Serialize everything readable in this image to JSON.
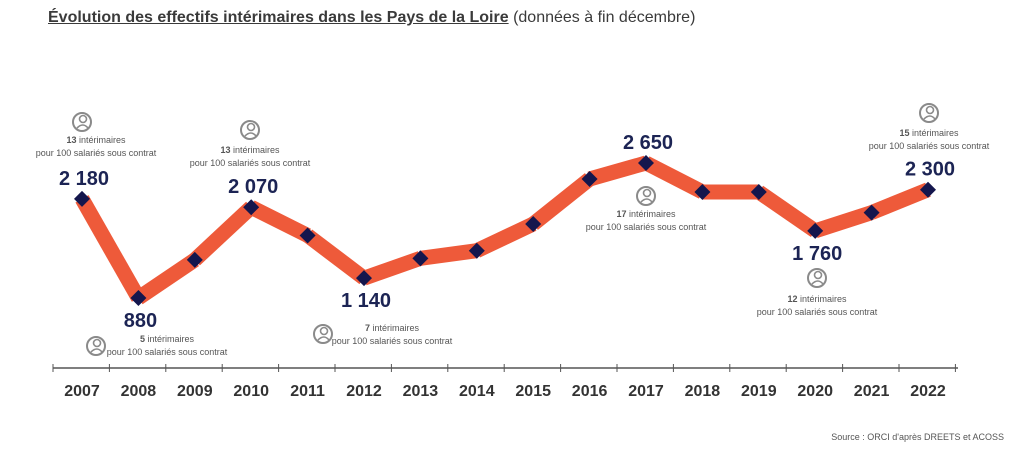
{
  "title": "Évolution des effectifs intérimaires dans les Pays de la Loire",
  "subtitle": "(données à fin décembre)",
  "source": "Source : ORCI d'après DREETS et ACOSS",
  "colors": {
    "line": "#ee5a3a",
    "marker": "#14164d",
    "label": "#1c2454",
    "axis": "#555555",
    "annot": "#555555"
  },
  "chart_data": {
    "type": "line",
    "x": [
      "2007",
      "2008",
      "2009",
      "2010",
      "2011",
      "2012",
      "2013",
      "2014",
      "2015",
      "2016",
      "2017",
      "2018",
      "2019",
      "2020",
      "2021",
      "2022"
    ],
    "series": [
      {
        "values": [
          2180,
          880,
          1380,
          2070,
          1700,
          1140,
          1400,
          1500,
          1850,
          2440,
          2650,
          2270,
          2270,
          1760,
          2000,
          2300
        ]
      }
    ],
    "data_labels": [
      {
        "year": "2007",
        "text": "2 180"
      },
      {
        "year": "2008",
        "text": "880"
      },
      {
        "year": "2010",
        "text": "2 070"
      },
      {
        "year": "2012",
        "text": "1 140"
      },
      {
        "year": "2017",
        "text": "2 650"
      },
      {
        "year": "2020",
        "text": "1 760"
      },
      {
        "year": "2022",
        "text": "2 300"
      }
    ],
    "annotations": [
      {
        "year": "2007",
        "bold": "13",
        "line1": " intérimaires",
        "line2": "pour 100 salariés sous contrat",
        "position": "above"
      },
      {
        "year": "2008",
        "bold": "5",
        "line1": " intérimaires",
        "line2": "pour 100 salariés sous contrat",
        "position": "below"
      },
      {
        "year": "2010",
        "bold": "13",
        "line1": " intérimaires",
        "line2": "pour 100 salariés sous contrat",
        "position": "above"
      },
      {
        "year": "2012",
        "bold": "7",
        "line1": " intérimaires",
        "line2": "pour 100 salariés sous contrat",
        "position": "below"
      },
      {
        "year": "2017",
        "bold": "17",
        "line1": " intérimaires",
        "line2": "pour 100 salariés sous contrat",
        "position": "below"
      },
      {
        "year": "2020",
        "bold": "12",
        "line1": " intérimaires",
        "line2": "pour 100 salariés sous contrat",
        "position": "below"
      },
      {
        "year": "2022",
        "bold": "15",
        "line1": " intérimaires",
        "line2": "pour 100 salariés sous contrat",
        "position": "above"
      }
    ],
    "ylim": [
      880,
      2650
    ],
    "grid": false,
    "legend": "none"
  }
}
